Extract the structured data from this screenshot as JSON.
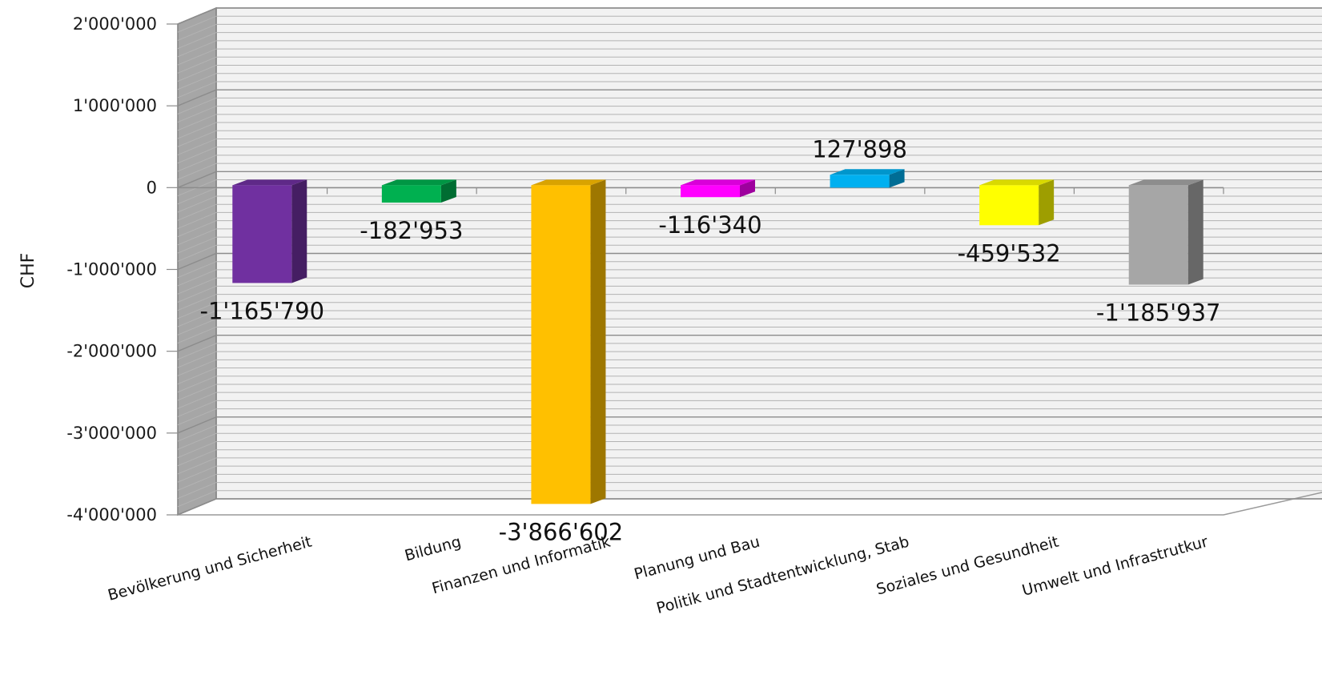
{
  "chart_data": {
    "type": "bar",
    "title": "",
    "xlabel": "",
    "ylabel": "CHF",
    "ylim": [
      -4000000,
      2000000
    ],
    "yticks": [
      2000000,
      1000000,
      0,
      -1000000,
      -2000000,
      -3000000,
      -4000000
    ],
    "ytick_labels": [
      "2'000'000",
      "1'000'000",
      "0",
      "-1'000'000",
      "-2'000'000",
      "-3'000'000",
      "-4'000'000"
    ],
    "grid": true,
    "categories": [
      "Bevölkerung und Sicherheit",
      "Bildung",
      "Finanzen und Informatik",
      "Planung und Bau",
      "Politik und Stadtentwicklung, Stab",
      "Soziales und Gesundheit",
      "Umwelt und Infrastrutkur"
    ],
    "values": [
      -1165790,
      -182953,
      -3866602,
      -116340,
      127898,
      -459532,
      -1185937
    ],
    "value_labels": [
      "-1'165'790",
      "-182'953",
      "-3'866'602",
      "-116'340",
      "127'898",
      "-459'532",
      "-1'185'937"
    ],
    "colors": [
      "#7030a0",
      "#00b050",
      "#ffc000",
      "#ff00ff",
      "#00b0f0",
      "#ffff00",
      "#a6a6a6"
    ]
  }
}
